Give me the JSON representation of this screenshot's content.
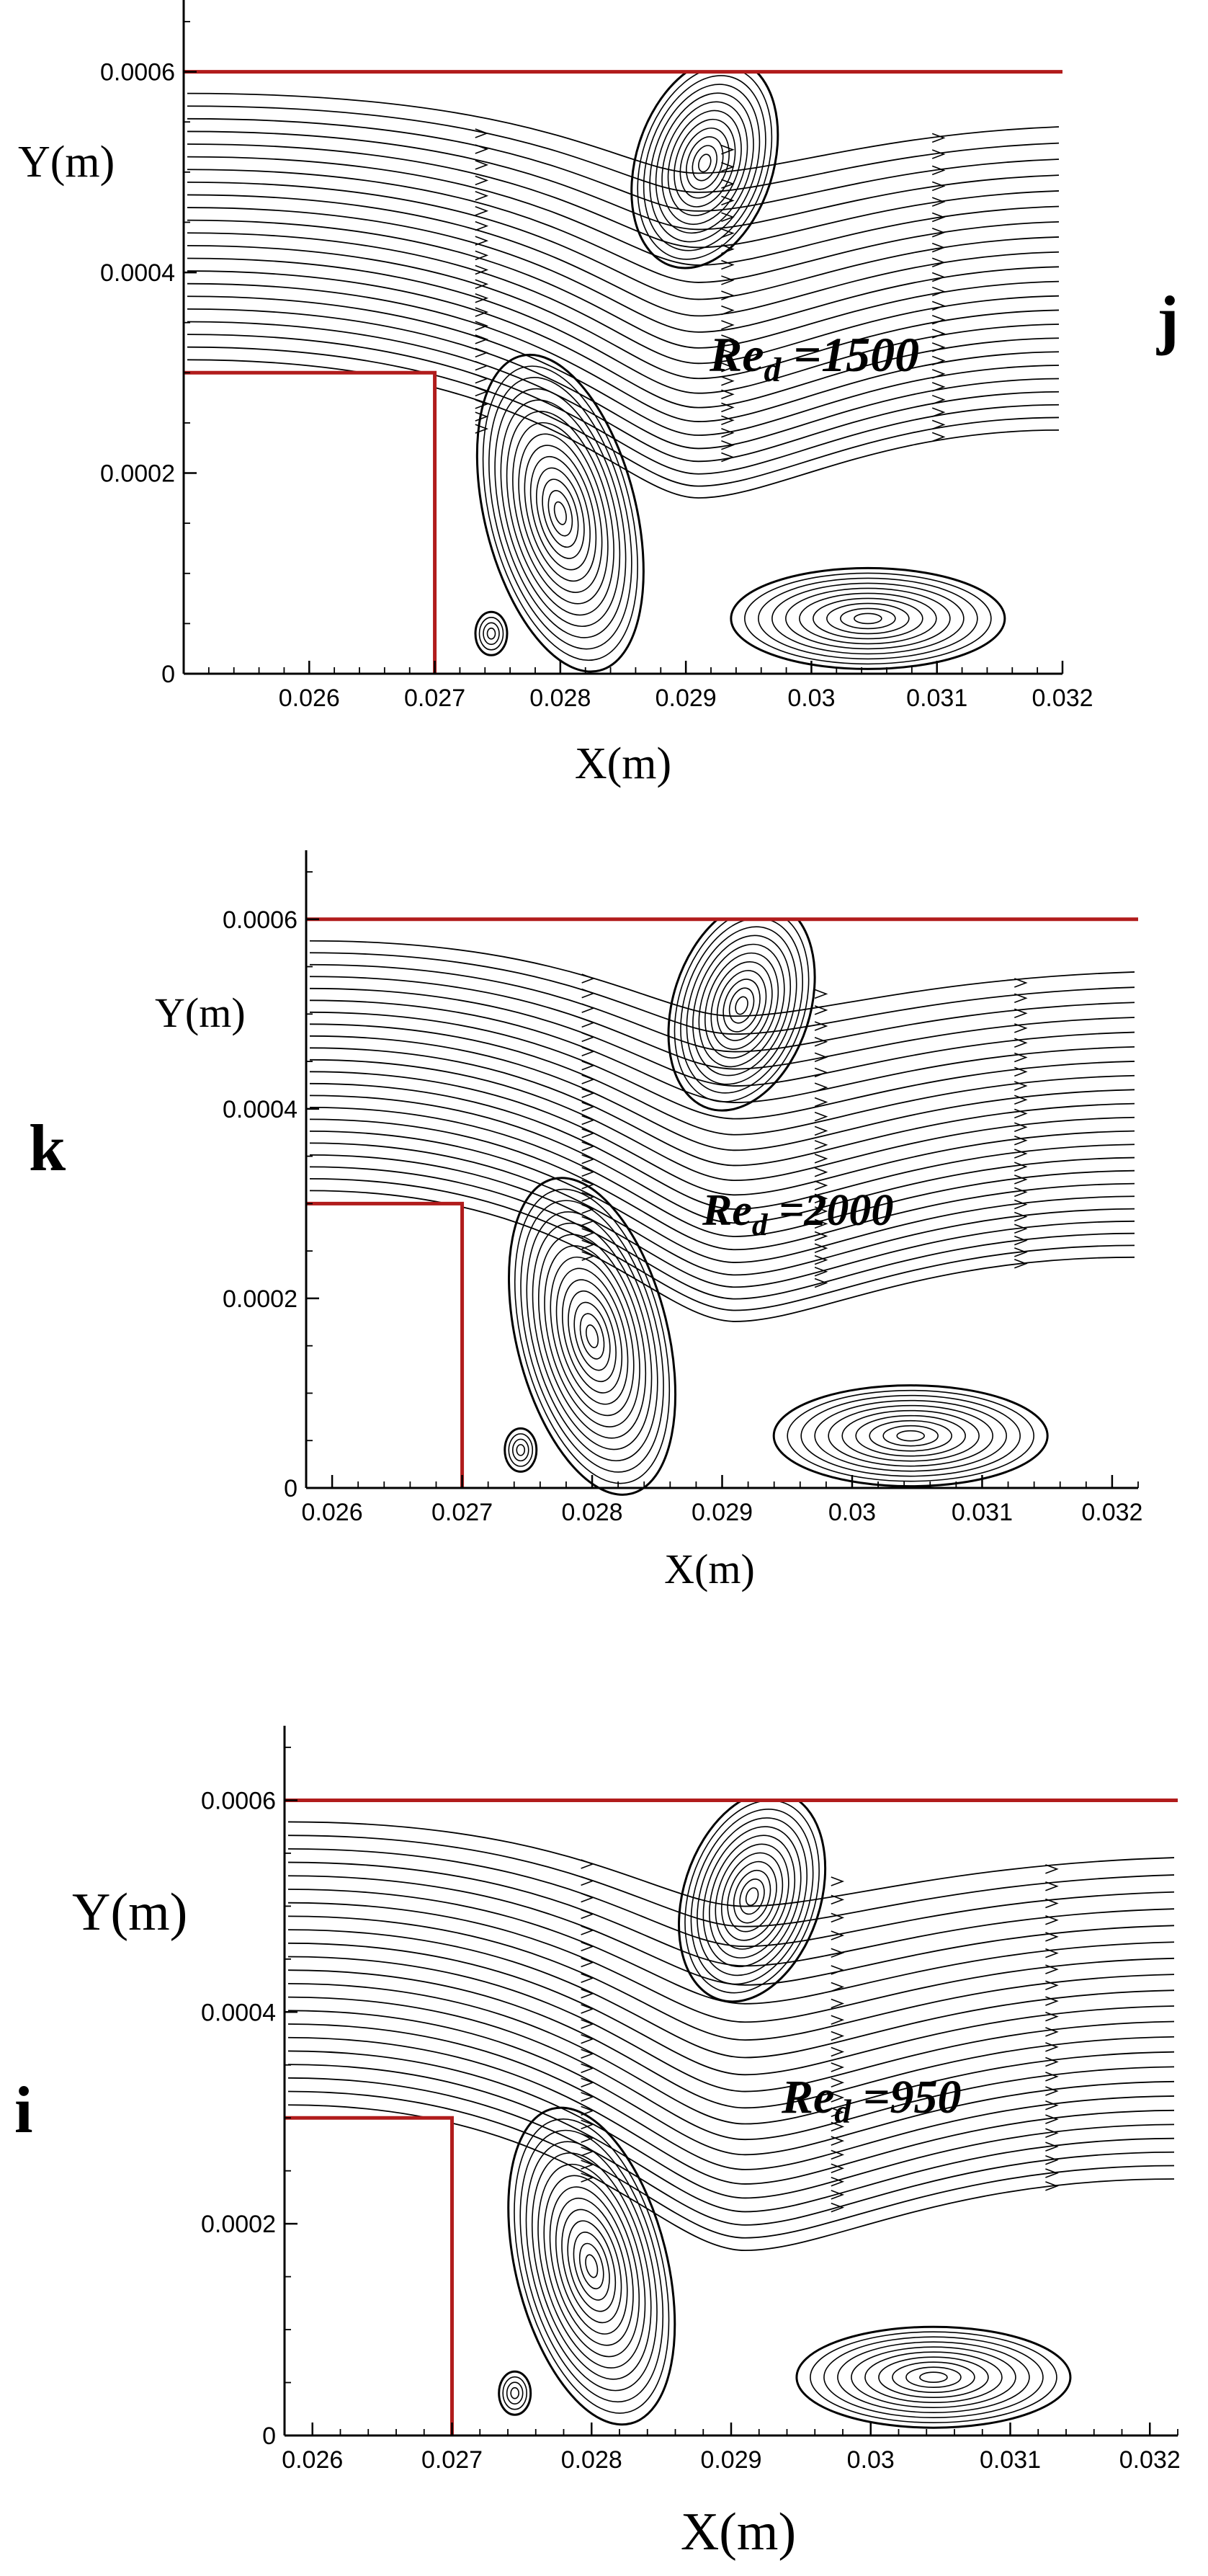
{
  "panels": [
    {
      "id": "j",
      "letter": "j",
      "xlabel": "X(m)",
      "ylabel": "Y(m)",
      "re_symbol": "Re",
      "re_subscript": "d",
      "re_value": " =1500",
      "xticks": [
        "0.026",
        "0.027",
        "0.028",
        "0.029",
        "0.03",
        "0.031",
        "0.032"
      ],
      "yticks": [
        "0",
        "0.0002",
        "0.0004",
        "0.0006"
      ],
      "xlim": [
        0.025,
        0.032
      ],
      "ylim": [
        0,
        0.00065
      ],
      "step_x": 0.027,
      "step_y": 0.0003,
      "wall_y": 0.0006
    },
    {
      "id": "k",
      "letter": "k",
      "xlabel": "X(m)",
      "ylabel": "Y(m)",
      "re_symbol": "Re",
      "re_subscript": "d",
      "re_value": " =2000",
      "xticks": [
        "0.026",
        "0.027",
        "0.028",
        "0.029",
        "0.03",
        "0.031",
        "0.032"
      ],
      "yticks": [
        "0",
        "0.0002",
        "0.0004",
        "0.0006"
      ],
      "xlim": [
        0.0258,
        0.0322
      ],
      "ylim": [
        0,
        0.00065
      ],
      "step_x": 0.027,
      "step_y": 0.0003,
      "wall_y": 0.0006
    },
    {
      "id": "i",
      "letter": "i",
      "xlabel": "X(m)",
      "ylabel": "Y(m)",
      "re_symbol": "Re",
      "re_subscript": "d",
      "re_value": " =950",
      "xticks": [
        "0.026",
        "0.027",
        "0.028",
        "0.029",
        "0.03",
        "0.031",
        "0.032"
      ],
      "yticks": [
        "0",
        "0.0002",
        "0.0004",
        "0.0006"
      ],
      "xlim": [
        0.0258,
        0.0322
      ],
      "ylim": [
        0,
        0.00065
      ],
      "step_x": 0.027,
      "step_y": 0.0003,
      "wall_y": 0.0006
    }
  ]
}
